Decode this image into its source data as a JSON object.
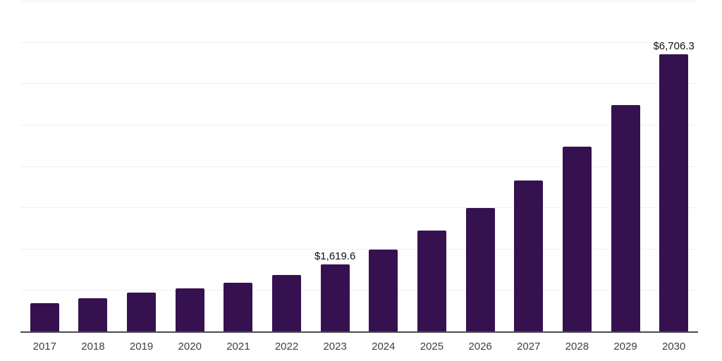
{
  "chart_data": {
    "type": "bar",
    "title": "",
    "xlabel": "",
    "ylabel": "",
    "categories": [
      "2017",
      "2018",
      "2019",
      "2020",
      "2021",
      "2022",
      "2023",
      "2024",
      "2025",
      "2026",
      "2027",
      "2028",
      "2029",
      "2030"
    ],
    "values": [
      680,
      805,
      930,
      1035,
      1175,
      1360,
      1619.6,
      1984,
      2431,
      2978,
      3648,
      4469,
      5476,
      6706.3
    ],
    "annotations": [
      {
        "category": "2023",
        "label": "$1,619.6"
      },
      {
        "category": "2030",
        "label": "$6,706.3"
      }
    ],
    "ylim": [
      0,
      8000
    ],
    "gridline_interval": 1000,
    "grid": "horizontal",
    "legend": "none",
    "y_axis_tick_labels": "none",
    "colors": {
      "bar": "#36114f",
      "axis_line": "#4d4d4d",
      "gridline": "#f0f0f0",
      "tick_label": "#404040",
      "value_label": "#111111",
      "background": "#ffffff"
    }
  }
}
